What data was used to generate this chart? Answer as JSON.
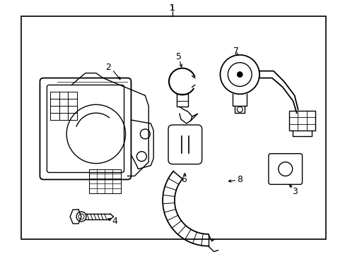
{
  "bg_color": "#ffffff",
  "line_color": "#000000",
  "label_color": "#000000",
  "figsize": [
    4.89,
    3.6
  ],
  "dpi": 100
}
